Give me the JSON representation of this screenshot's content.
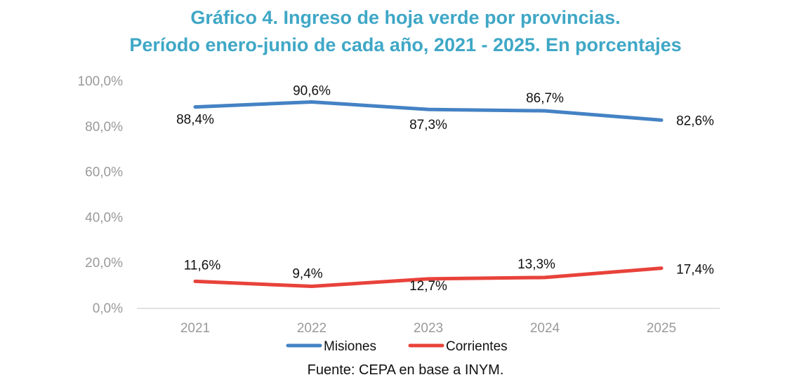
{
  "chart_data": {
    "type": "line",
    "title_line1": "Gráfico 4. Ingreso de hoja verde por provincias.",
    "title_line2": "Período enero-junio de cada año, 2021 - 2025. En porcentajes",
    "categories": [
      "2021",
      "2022",
      "2023",
      "2024",
      "2025"
    ],
    "y_ticks": [
      "0,0%",
      "20,0%",
      "40,0%",
      "60,0%",
      "80,0%",
      "100,0%"
    ],
    "ylim": [
      0,
      100
    ],
    "grid": false,
    "legend_position": "bottom",
    "series": [
      {
        "name": "Misiones",
        "color": "#4482c4",
        "values": [
          88.4,
          90.6,
          87.3,
          86.7,
          82.6
        ],
        "labels": [
          "88,4%",
          "90,6%",
          "87,3%",
          "86,7%",
          "82,6%"
        ]
      },
      {
        "name": "Corrientes",
        "color": "#e8423a",
        "values": [
          11.6,
          9.4,
          12.7,
          13.3,
          17.4
        ],
        "labels": [
          "11,6%",
          "9,4%",
          "12,7%",
          "13,3%",
          "17,4%"
        ]
      }
    ]
  },
  "source": "Fuente: CEPA en base a INYM."
}
